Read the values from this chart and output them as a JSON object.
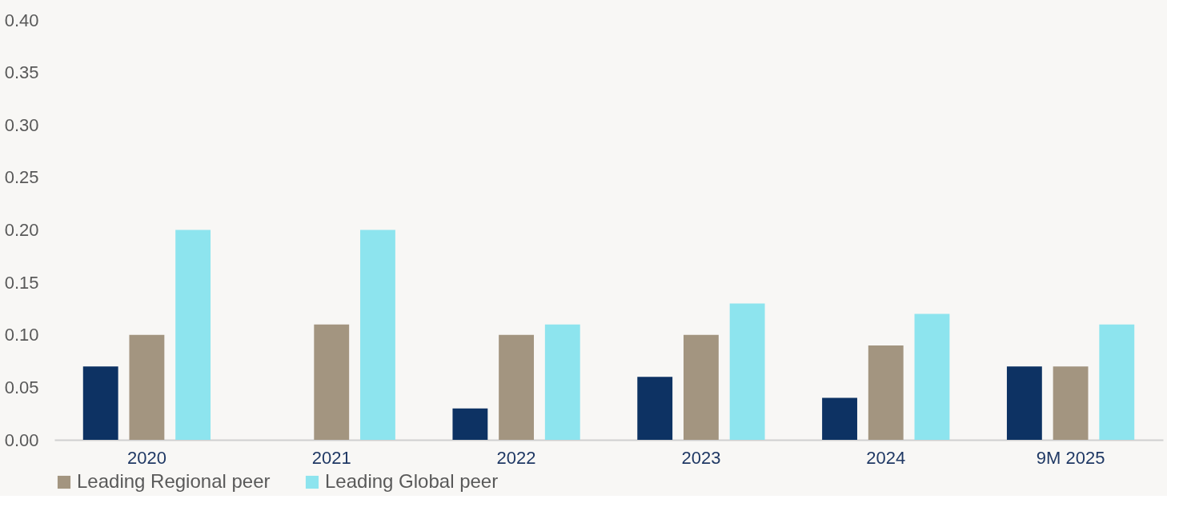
{
  "chart_data": {
    "type": "bar",
    "categories": [
      "2020",
      "2021",
      "2022",
      "2023",
      "2024",
      "9M 2025"
    ],
    "series": [
      {
        "color": "#0d3263",
        "values": [
          0.07,
          0,
          0.03,
          0.06,
          0.04,
          0.07
        ]
      },
      {
        "name": "Leading Regional peer",
        "color": "#a39580",
        "values": [
          0.1,
          0.11,
          0.1,
          0.1,
          0.09,
          0.07
        ]
      },
      {
        "name": "Leading Global peer",
        "color": "#8de4ee",
        "values": [
          0.2,
          0.2,
          0.11,
          0.13,
          0.12,
          0.11
        ]
      }
    ],
    "ylim": [
      0,
      0.4
    ],
    "yticks": [
      {
        "value": 0,
        "label": "0.00"
      },
      {
        "value": 0.05,
        "label": "0.05"
      },
      {
        "value": 0.1,
        "label": "0.10"
      },
      {
        "value": 0.15,
        "label": "0.15"
      },
      {
        "value": 0.2,
        "label": "0.20"
      },
      {
        "value": 0.25,
        "label": "0.25"
      },
      {
        "value": 0.3,
        "label": "0.30"
      },
      {
        "value": 0.35,
        "label": "0.35"
      },
      {
        "value": 0.4,
        "label": "0.40"
      }
    ],
    "grid": false,
    "legend": "bottom"
  }
}
